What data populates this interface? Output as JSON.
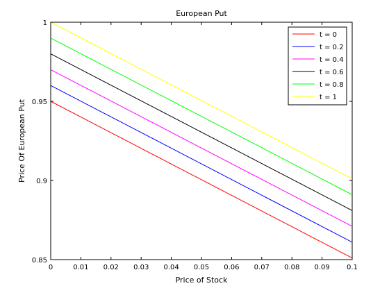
{
  "chart_data": {
    "type": "line",
    "title": "European Put",
    "xlabel": "Price of Stock",
    "ylabel": "Price Of European Put",
    "xlim": [
      0,
      0.1
    ],
    "ylim": [
      0.85,
      1
    ],
    "xticks": [
      0,
      0.01,
      0.02,
      0.03,
      0.04,
      0.05,
      0.06,
      0.07,
      0.08,
      0.09,
      0.1
    ],
    "xtick_labels": [
      "0",
      "0.01",
      "0.02",
      "0.03",
      "0.04",
      "0.05",
      "0.06",
      "0.07",
      "0.08",
      "0.09",
      "0.1"
    ],
    "yticks": [
      0.85,
      0.9,
      0.95,
      1
    ],
    "ytick_labels": [
      "0.85",
      "0.9",
      "0.95",
      "1"
    ],
    "grid": false,
    "legend_position": "top-right",
    "x": [
      0,
      0.1
    ],
    "series": [
      {
        "name": "t = 0",
        "color": "#ff0000",
        "values": [
          0.95,
          0.851
        ]
      },
      {
        "name": "t = 0.2",
        "color": "#0000ff",
        "values": [
          0.96,
          0.861
        ]
      },
      {
        "name": "t = 0.4",
        "color": "#ff00ff",
        "values": [
          0.97,
          0.871
        ]
      },
      {
        "name": "t = 0.6",
        "color": "#000000",
        "values": [
          0.98,
          0.881
        ]
      },
      {
        "name": "t = 0.8",
        "color": "#00ff00",
        "values": [
          0.99,
          0.891
        ]
      },
      {
        "name": "t = 1",
        "color": "#ffff00",
        "values": [
          1.0,
          0.901
        ]
      }
    ]
  }
}
